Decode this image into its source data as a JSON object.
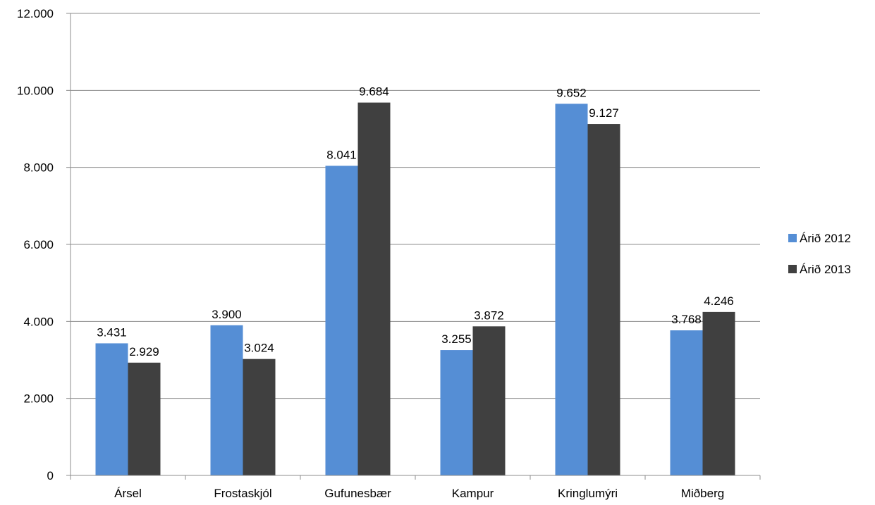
{
  "chart_data": {
    "type": "bar",
    "categories": [
      "Ársel",
      "Frostaskjól",
      "Gufunesbær",
      "Kampur",
      "Kringlumýri",
      "Miðberg"
    ],
    "series": [
      {
        "name": "Árið 2012",
        "color": "#558ed5",
        "values": [
          3431,
          3900,
          8041,
          3255,
          9652,
          3768
        ],
        "labels": [
          "3.431",
          "3.900",
          "8.041",
          "3.255",
          "9.652",
          "3.768"
        ]
      },
      {
        "name": "Árið 2013",
        "color": "#404040",
        "values": [
          2929,
          3024,
          9684,
          3872,
          9127,
          4246
        ],
        "labels": [
          "2.929",
          "3.024",
          "9.684",
          "3.872",
          "9.127",
          "4.246"
        ]
      }
    ],
    "ylim": [
      0,
      12000
    ],
    "yticks": [
      0,
      2000,
      4000,
      6000,
      8000,
      10000,
      12000
    ],
    "ytick_labels": [
      "0",
      "2.000",
      "4.000",
      "6.000",
      "8.000",
      "10.000",
      "12.000"
    ],
    "grid": true,
    "legend_position": "right"
  }
}
